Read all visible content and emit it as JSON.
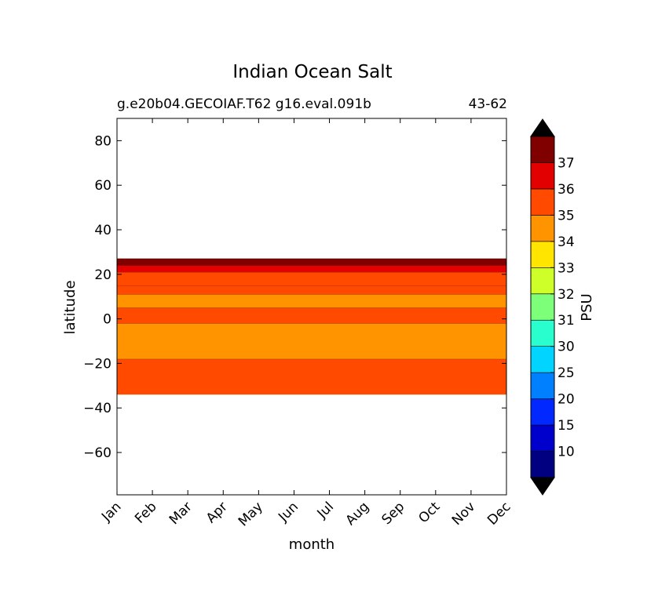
{
  "chart_data": {
    "type": "heatmap",
    "title": "Indian Ocean Salt",
    "subtitle_left": "g.e20b04.GECOIAF.T62 g16.eval.091b",
    "subtitle_right": "43-62",
    "xlabel": "month",
    "ylabel": "latitude",
    "x_categories": [
      "Jan",
      "Feb",
      "Mar",
      "Apr",
      "May",
      "Jun",
      "Jul",
      "Aug",
      "Sep",
      "Oct",
      "Nov",
      "Dec"
    ],
    "ylim": [
      -79,
      90
    ],
    "yticks": [
      80,
      60,
      40,
      20,
      0,
      -20,
      -40,
      -60
    ],
    "colorbar": {
      "label": "PSU",
      "levels": [
        5,
        10,
        15,
        20,
        25,
        30,
        31,
        32,
        33,
        34,
        35,
        36,
        37,
        38
      ],
      "tick_values": [
        10,
        15,
        20,
        25,
        30,
        31,
        32,
        33,
        34,
        35,
        36,
        37
      ],
      "colors": [
        "#000080",
        "#0000cd",
        "#0028ff",
        "#0080ff",
        "#00d4ff",
        "#29ffce",
        "#7dff7a",
        "#ceff29",
        "#ffe500",
        "#ff9400",
        "#ff4a00",
        "#e30000",
        "#800000"
      ],
      "extend": "both",
      "under_color": "#000000",
      "over_color": "#000000"
    },
    "bands": [
      {
        "lat_min": -34,
        "lat_max": -18,
        "salinity_range": "35-36",
        "color": "#ff4a00"
      },
      {
        "lat_min": -18,
        "lat_max": -2,
        "salinity_range": "34-35",
        "color": "#ff9400"
      },
      {
        "lat_min": -2,
        "lat_max": 5,
        "salinity_range": "35-36",
        "color": "#ff4a00"
      },
      {
        "lat_min": 5,
        "lat_max": 11,
        "salinity_range": "34-35",
        "color": "#ff9400"
      },
      {
        "lat_min": 11,
        "lat_max": 15,
        "salinity_range": "35-36",
        "color": "#ff4a00"
      },
      {
        "lat_min": 15,
        "lat_max": 21,
        "salinity_range": "35-36",
        "color": "#ff4a00"
      },
      {
        "lat_min": 21,
        "lat_max": 24,
        "salinity_range": "36-37",
        "color": "#e30000"
      },
      {
        "lat_min": 24,
        "lat_max": 27,
        "salinity_range": "37-38",
        "color": "#800000"
      }
    ]
  }
}
